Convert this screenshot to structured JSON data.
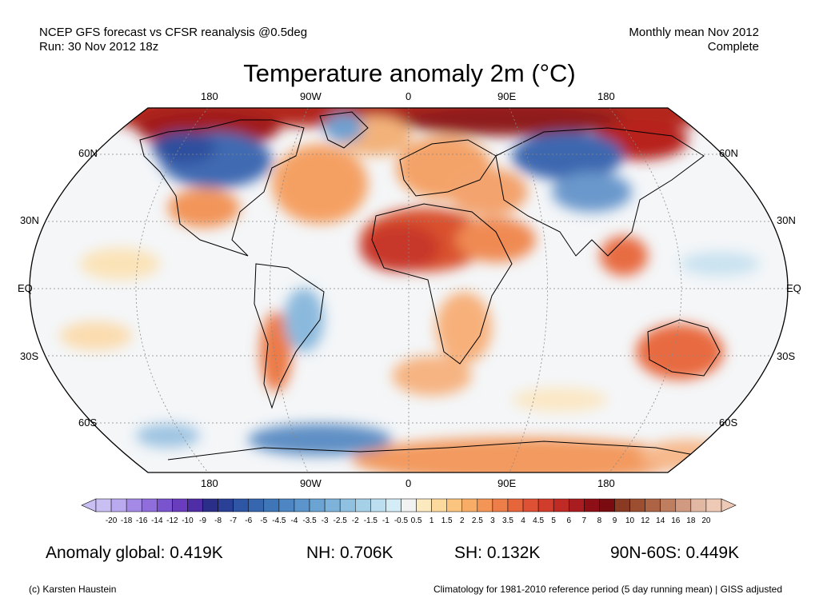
{
  "header": {
    "left_line1": "NCEP GFS forecast vs CFSR reanalysis @0.5deg",
    "left_line2": "Run: 30 Nov 2012 18z",
    "right_line1": "Monthly mean Nov 2012",
    "right_line2": "Complete"
  },
  "title": "Temperature anomaly 2m (°C)",
  "map": {
    "projection": "Robinson",
    "lon_labels_top": [
      "180",
      "90W",
      "0",
      "90E",
      "180"
    ],
    "lon_labels_bottom": [
      "180",
      "90W",
      "0",
      "90E",
      "180"
    ],
    "lat_labels": [
      "60N",
      "30N",
      "EQ",
      "30S",
      "60S"
    ],
    "warm_regions": [
      "Arctic / Siberia",
      "Sahara & West Africa",
      "Australia",
      "Antarctica coast"
    ],
    "cold_regions": [
      "Alaska / Western Canada",
      "Central Asia / Siberia",
      "Southern Ocean"
    ]
  },
  "colorbar": {
    "labels": [
      "-20",
      "-18",
      "-16",
      "-14",
      "-12",
      "-10",
      "-9",
      "-8",
      "-7",
      "-6",
      "-5",
      "-4.5",
      "-4",
      "-3.5",
      "-3",
      "-2.5",
      "-2",
      "-1.5",
      "-1",
      "-0.5",
      "0.5",
      "1",
      "1.5",
      "2",
      "2.5",
      "3",
      "3.5",
      "4",
      "4.5",
      "5",
      "6",
      "7",
      "8",
      "9",
      "10",
      "12",
      "14",
      "16",
      "18",
      "20"
    ],
    "colors": [
      "#c9bff2",
      "#b9a9ee",
      "#a48ae6",
      "#8f6edc",
      "#7a53cf",
      "#6a3dbf",
      "#4f2da6",
      "#2c2f8a",
      "#2a3f96",
      "#2e56a5",
      "#3566ae",
      "#3f76b8",
      "#4d86c2",
      "#5b95cb",
      "#6ba4d3",
      "#7db2da",
      "#91c1e1",
      "#a6d0e8",
      "#bcdfef",
      "#d4ecf5",
      "#f2f2f2",
      "#fbe9bf",
      "#fcd99c",
      "#fbc47f",
      "#f8ad67",
      "#f49556",
      "#ee7e48",
      "#e6663c",
      "#de5134",
      "#d13d2c",
      "#c02a25",
      "#a91c1f",
      "#8f0f17",
      "#7a0b11",
      "#8a3a22",
      "#9c4f30",
      "#ad6445",
      "#bf7e60",
      "#d19a80",
      "#e3b8a2",
      "#edc9b6"
    ]
  },
  "stats": {
    "global": "Anomaly global: 0.419K",
    "nh": "NH: 0.706K",
    "sh": "SH: 0.132K",
    "arctic": "90N-60S: 0.449K"
  },
  "footer": {
    "left": "(c) Karsten Haustein",
    "right": "Climatology for 1981-2010 reference period (5 day running mean) | GISS adjusted"
  }
}
